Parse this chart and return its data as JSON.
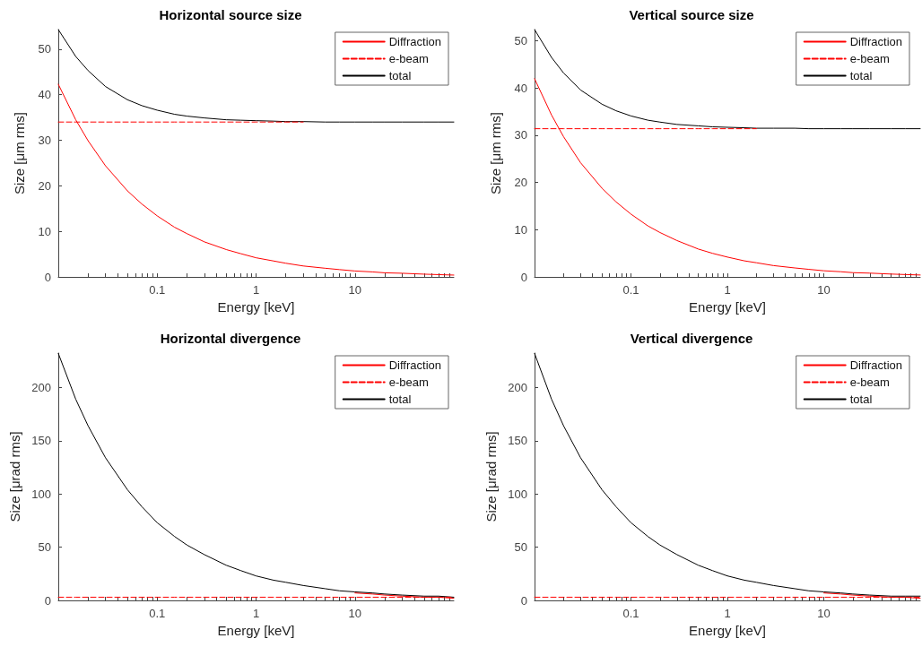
{
  "chart_data": [
    {
      "type": "line",
      "title": "Horizontal source size",
      "xlabel": "Energy [keV]",
      "ylabel": "Size [μm rms]",
      "log": "x",
      "xlim": [
        0.01,
        100
      ],
      "xticks": [
        0.1,
        1,
        10
      ],
      "ylim": [
        0,
        54.3
      ],
      "yticks": [
        0,
        10,
        20,
        30,
        40,
        50
      ],
      "grid": false,
      "legend": "top right",
      "marker": "none",
      "x": [
        0.01,
        0.015,
        0.02,
        0.03,
        0.05,
        0.07,
        0.1,
        0.15,
        0.2,
        0.3,
        0.5,
        0.7,
        1,
        1.5,
        2,
        3,
        5,
        7,
        10,
        15,
        20,
        30,
        50,
        70,
        100
      ],
      "series": [
        {
          "name": "Diffraction",
          "color": "#ff0000",
          "line_style": "solid",
          "values": [
            42.3,
            34.5,
            29.9,
            24.4,
            18.9,
            16.0,
            13.4,
            10.9,
            9.5,
            7.7,
            6.0,
            5.1,
            4.2,
            3.5,
            3.0,
            2.4,
            1.9,
            1.6,
            1.3,
            1.1,
            0.9,
            0.8,
            0.6,
            0.5,
            0.4
          ]
        },
        {
          "name": "e-beam",
          "color": "#ff0000",
          "line_style": "dashed",
          "values": [
            34.0,
            34.0,
            34.0,
            34.0,
            34.0,
            34.0,
            34.0,
            34.0,
            34.0,
            34.0,
            34.0,
            34.0,
            34.0,
            34.0,
            34.0,
            34.0,
            null,
            null,
            null,
            null,
            null,
            null,
            null,
            null,
            null
          ]
        },
        {
          "name": "total",
          "color": "#000000",
          "line_style": "solid",
          "values": [
            54.3,
            48.4,
            45.3,
            41.8,
            38.9,
            37.6,
            36.6,
            35.7,
            35.3,
            34.9,
            34.5,
            34.4,
            34.3,
            34.2,
            34.1,
            34.1,
            34.0,
            34.0,
            34.0,
            34.0,
            34.0,
            34.0,
            34.0,
            34.0,
            34.0
          ]
        }
      ]
    },
    {
      "type": "line",
      "title": "Vertical source size",
      "xlabel": "Energy [keV]",
      "ylabel": "Size [μm rms]",
      "log": "x",
      "xlim": [
        0.01,
        100
      ],
      "xticks": [
        0.1,
        1,
        10
      ],
      "ylim": [
        0,
        52.4
      ],
      "yticks": [
        0,
        10,
        20,
        30,
        40,
        50
      ],
      "grid": false,
      "legend": "top right",
      "marker": "none",
      "x": [
        0.01,
        0.015,
        0.02,
        0.03,
        0.05,
        0.07,
        0.1,
        0.15,
        0.2,
        0.3,
        0.5,
        0.7,
        1,
        1.5,
        2,
        3,
        5,
        7,
        10,
        15,
        20,
        30,
        50,
        70,
        100
      ],
      "series": [
        {
          "name": "Diffraction",
          "color": "#ff0000",
          "line_style": "solid",
          "values": [
            42.0,
            34.3,
            29.7,
            24.2,
            18.8,
            15.9,
            13.3,
            10.8,
            9.4,
            7.7,
            5.9,
            5.0,
            4.2,
            3.4,
            3.0,
            2.4,
            1.9,
            1.6,
            1.3,
            1.1,
            0.9,
            0.8,
            0.6,
            0.5,
            0.4
          ]
        },
        {
          "name": "e-beam",
          "color": "#ff0000",
          "line_style": "dashed",
          "values": [
            31.4,
            31.4,
            31.4,
            31.4,
            31.4,
            31.4,
            31.4,
            31.4,
            31.4,
            31.4,
            31.4,
            31.4,
            31.4,
            31.4,
            31.4,
            null,
            null,
            null,
            null,
            null,
            null,
            null,
            null,
            null,
            null
          ]
        },
        {
          "name": "total",
          "color": "#000000",
          "line_style": "solid",
          "values": [
            52.4,
            46.5,
            43.2,
            39.6,
            36.6,
            35.2,
            34.1,
            33.2,
            32.8,
            32.3,
            32.0,
            31.8,
            31.7,
            31.6,
            31.5,
            31.5,
            31.5,
            31.4,
            31.4,
            31.4,
            31.4,
            31.4,
            31.4,
            31.4,
            31.4
          ]
        }
      ]
    },
    {
      "type": "line",
      "title": "Horizontal divergence",
      "xlabel": "Energy [keV]",
      "ylabel": "Size [μrad rms]",
      "log": "x",
      "xlim": [
        0.01,
        100
      ],
      "xticks": [
        0.1,
        1,
        10
      ],
      "ylim": [
        0,
        232.3
      ],
      "yticks": [
        0,
        50,
        100,
        150,
        200
      ],
      "grid": false,
      "legend": "top right",
      "marker": "none",
      "x": [
        0.01,
        0.015,
        0.02,
        0.03,
        0.05,
        0.07,
        0.1,
        0.15,
        0.2,
        0.3,
        0.5,
        0.7,
        1,
        1.5,
        2,
        3,
        5,
        7,
        10,
        15,
        20,
        30,
        50,
        70,
        100
      ],
      "series": [
        {
          "name": "Diffraction",
          "color": "#ff0000",
          "line_style": "solid",
          "values": [
            null,
            null,
            null,
            null,
            null,
            null,
            null,
            null,
            null,
            null,
            null,
            null,
            null,
            null,
            null,
            null,
            null,
            null,
            7,
            6,
            5,
            4,
            3,
            3,
            2
          ]
        },
        {
          "name": "e-beam",
          "color": "#ff0000",
          "line_style": "dashed",
          "values": [
            3,
            3,
            3,
            3,
            3,
            3,
            3,
            3,
            3,
            3,
            3,
            3,
            3,
            3,
            3,
            3,
            3,
            3,
            3,
            3,
            3,
            3,
            3,
            3,
            3
          ]
        },
        {
          "name": "total",
          "color": "#000000",
          "line_style": "solid",
          "values": [
            232,
            189,
            164,
            134,
            104,
            88,
            73,
            60,
            52,
            43,
            33,
            28,
            23,
            19,
            17,
            14,
            11,
            9,
            8,
            7,
            6,
            5,
            4,
            4,
            3
          ]
        }
      ]
    },
    {
      "type": "line",
      "title": "Vertical divergence",
      "xlabel": "Energy [keV]",
      "ylabel": "Size [μrad rms]",
      "log": "x",
      "xlim": [
        0.01,
        100
      ],
      "xticks": [
        0.1,
        1,
        10
      ],
      "ylim": [
        0,
        232.3
      ],
      "yticks": [
        0,
        50,
        100,
        150,
        200
      ],
      "grid": false,
      "legend": "top right",
      "marker": "none",
      "x": [
        0.01,
        0.015,
        0.02,
        0.03,
        0.05,
        0.07,
        0.1,
        0.15,
        0.2,
        0.3,
        0.5,
        0.7,
        1,
        1.5,
        2,
        3,
        5,
        7,
        10,
        15,
        20,
        30,
        50,
        70,
        100
      ],
      "series": [
        {
          "name": "Diffraction",
          "color": "#ff0000",
          "line_style": "solid",
          "values": [
            null,
            null,
            null,
            null,
            null,
            null,
            null,
            null,
            null,
            null,
            null,
            null,
            null,
            null,
            null,
            null,
            null,
            null,
            7,
            6,
            5,
            4,
            3,
            3,
            2
          ]
        },
        {
          "name": "e-beam",
          "color": "#ff0000",
          "line_style": "dashed",
          "values": [
            3,
            3,
            3,
            3,
            3,
            3,
            3,
            3,
            3,
            3,
            3,
            3,
            3,
            3,
            3,
            3,
            3,
            3,
            3,
            3,
            3,
            3,
            3,
            3,
            3
          ]
        },
        {
          "name": "total",
          "color": "#000000",
          "line_style": "solid",
          "values": [
            232,
            189,
            164,
            134,
            104,
            88,
            73,
            60,
            52,
            43,
            33,
            28,
            23,
            19,
            17,
            14,
            11,
            9,
            8,
            7,
            6,
            5,
            4,
            4,
            4
          ]
        }
      ]
    }
  ]
}
